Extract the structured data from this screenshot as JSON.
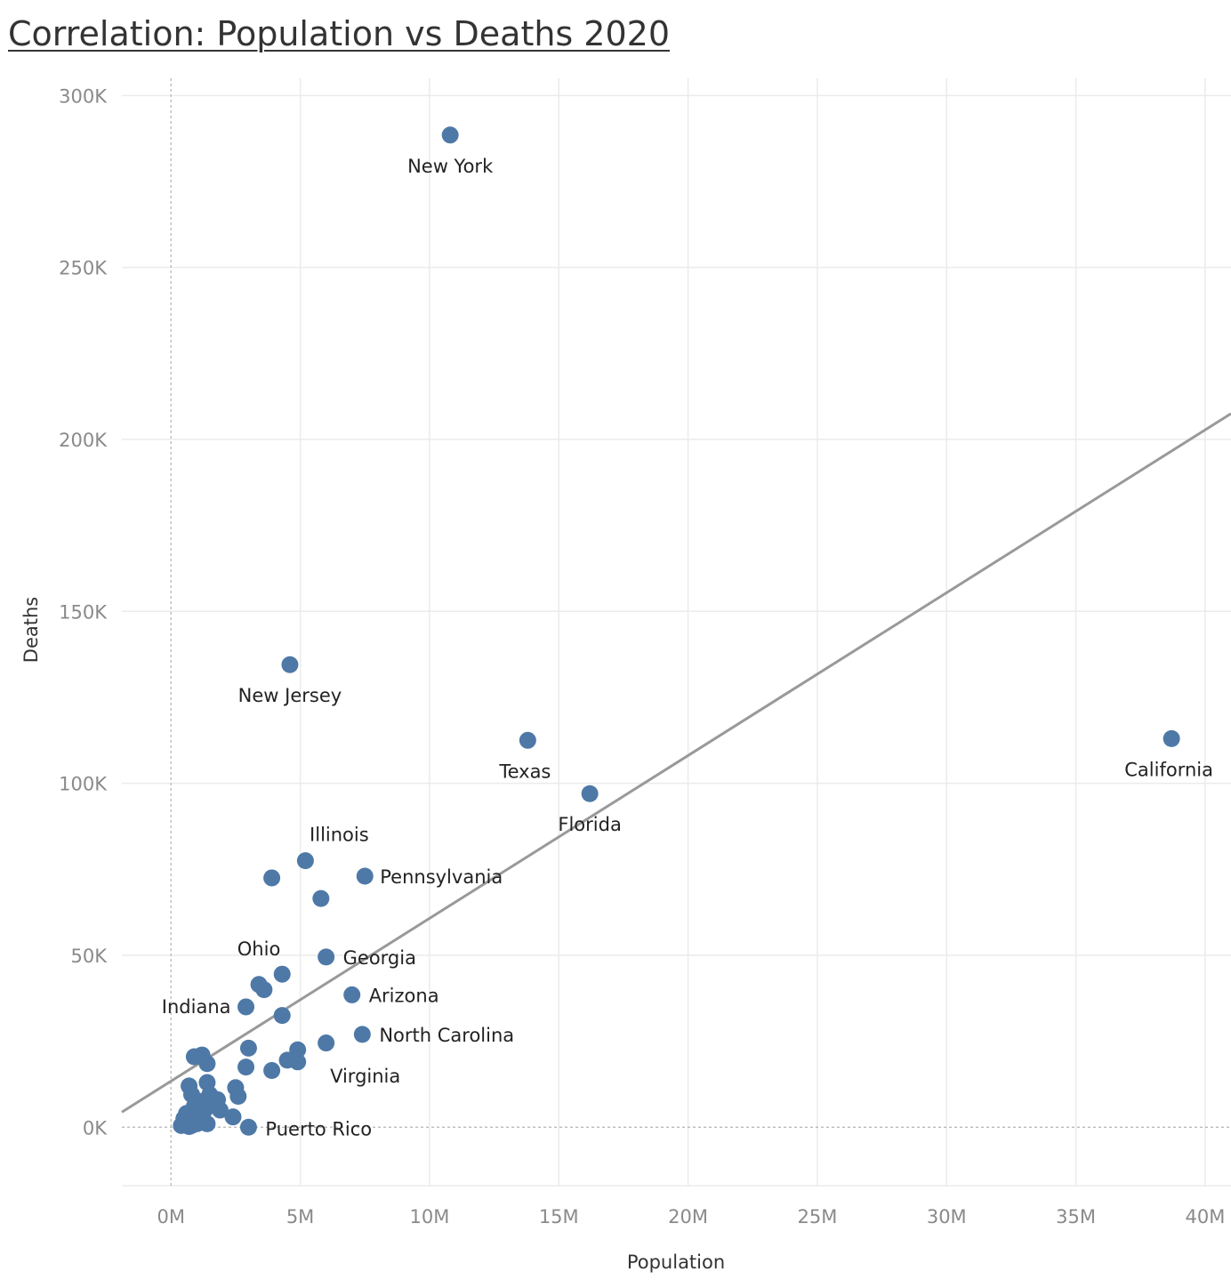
{
  "title": "Correlation: Population vs Deaths 2020",
  "colors": {
    "point": "#4e79a7",
    "trend": "#999999",
    "grid": "#ebebeb",
    "zero": "#b3b3b3"
  },
  "chart_data": {
    "type": "scatter",
    "title": "Correlation: Population vs Deaths 2020",
    "xlabel": "Population",
    "ylabel": "Deaths",
    "xlim": [
      -1.9,
      41.0
    ],
    "ylim": [
      -17000,
      305000
    ],
    "x_unit": "M",
    "y_unit": "K",
    "x_ticks": [
      0,
      5,
      10,
      15,
      20,
      25,
      30,
      35,
      40
    ],
    "x_tick_labels": [
      "0M",
      "5M",
      "10M",
      "15M",
      "20M",
      "25M",
      "30M",
      "35M",
      "40M"
    ],
    "y_ticks": [
      0,
      50000,
      100000,
      150000,
      200000,
      250000,
      300000
    ],
    "y_tick_labels": [
      "0K",
      "50K",
      "100K",
      "150K",
      "200K",
      "250K",
      "300K"
    ],
    "grid": true,
    "trend_line": {
      "type": "linear",
      "points": [
        [
          -1.9,
          4400
        ],
        [
          41.0,
          207500
        ]
      ]
    },
    "points": [
      {
        "label": "New York",
        "x": 10.8,
        "y": 288500
      },
      {
        "label": "New Jersey",
        "x": 4.6,
        "y": 134500
      },
      {
        "label": "Texas",
        "x": 13.8,
        "y": 112500
      },
      {
        "label": "California",
        "x": 38.7,
        "y": 113000
      },
      {
        "label": "Florida",
        "x": 16.2,
        "y": 97000
      },
      {
        "label": "Illinois",
        "x": 5.2,
        "y": 77500
      },
      {
        "label": "Pennsylvania",
        "x": 7.5,
        "y": 73000
      },
      {
        "label": "",
        "x": 3.9,
        "y": 72500
      },
      {
        "label": "",
        "x": 5.8,
        "y": 66500
      },
      {
        "label": "Georgia",
        "x": 6.0,
        "y": 49500
      },
      {
        "label": "",
        "x": 4.3,
        "y": 44500
      },
      {
        "label": "Ohio",
        "x": 3.4,
        "y": 41500
      },
      {
        "label": "",
        "x": 3.6,
        "y": 40000
      },
      {
        "label": "Arizona",
        "x": 7.0,
        "y": 38500
      },
      {
        "label": "Indiana",
        "x": 2.9,
        "y": 35000
      },
      {
        "label": "",
        "x": 4.3,
        "y": 32500
      },
      {
        "label": "North Carolina",
        "x": 7.4,
        "y": 27000
      },
      {
        "label": "",
        "x": 6.0,
        "y": 24500
      },
      {
        "label": "",
        "x": 3.0,
        "y": 23000
      },
      {
        "label": "",
        "x": 4.9,
        "y": 22500
      },
      {
        "label": "",
        "x": 1.2,
        "y": 21000
      },
      {
        "label": "",
        "x": 0.9,
        "y": 20500
      },
      {
        "label": "",
        "x": 4.5,
        "y": 19500
      },
      {
        "label": "Virginia",
        "x": 4.9,
        "y": 19000
      },
      {
        "label": "",
        "x": 1.4,
        "y": 18500
      },
      {
        "label": "",
        "x": 2.9,
        "y": 17500
      },
      {
        "label": "",
        "x": 3.9,
        "y": 16500
      },
      {
        "label": "",
        "x": 1.4,
        "y": 13000
      },
      {
        "label": "",
        "x": 0.7,
        "y": 12000
      },
      {
        "label": "",
        "x": 2.5,
        "y": 11500
      },
      {
        "label": "",
        "x": 0.8,
        "y": 9500
      },
      {
        "label": "",
        "x": 1.5,
        "y": 9500
      },
      {
        "label": "",
        "x": 2.6,
        "y": 9000
      },
      {
        "label": "",
        "x": 1.8,
        "y": 8000
      },
      {
        "label": "",
        "x": 1.1,
        "y": 7500
      },
      {
        "label": "",
        "x": 1.6,
        "y": 6500
      },
      {
        "label": "",
        "x": 0.9,
        "y": 6000
      },
      {
        "label": "",
        "x": 1.3,
        "y": 5000
      },
      {
        "label": "",
        "x": 1.9,
        "y": 5000
      },
      {
        "label": "",
        "x": 0.6,
        "y": 4000
      },
      {
        "label": "",
        "x": 0.9,
        "y": 3500
      },
      {
        "label": "",
        "x": 2.4,
        "y": 3000
      },
      {
        "label": "",
        "x": 0.5,
        "y": 2500
      },
      {
        "label": "",
        "x": 1.0,
        "y": 2000
      },
      {
        "label": "",
        "x": 0.7,
        "y": 1500
      },
      {
        "label": "",
        "x": 1.4,
        "y": 1000
      },
      {
        "label": "",
        "x": 0.4,
        "y": 500
      },
      {
        "label": "",
        "x": 0.8,
        "y": 500
      },
      {
        "label": "",
        "x": 1.0,
        "y": 1000
      },
      {
        "label": "",
        "x": 0.7,
        "y": 200
      },
      {
        "label": "Puerto Rico",
        "x": 3.0,
        "y": 0
      }
    ]
  }
}
